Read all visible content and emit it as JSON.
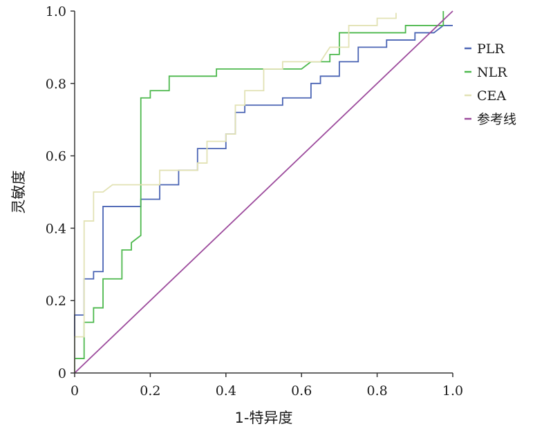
{
  "chart_data": {
    "type": "line",
    "title": "",
    "xlabel": "1-特异度",
    "ylabel": "灵敏度",
    "xlim": [
      0,
      1
    ],
    "ylim": [
      0,
      1
    ],
    "x_ticks": [
      0,
      0.2,
      0.4,
      0.6,
      0.8,
      1.0
    ],
    "x_tick_labels": [
      "0",
      "0.2",
      "0.4",
      "0.6",
      "0.8",
      "1.0"
    ],
    "y_ticks": [
      0,
      0.2,
      0.4,
      0.6,
      0.8,
      1.0
    ],
    "y_tick_labels": [
      "0",
      "0.2",
      "0.4",
      "0.6",
      "0.8",
      "1.0"
    ],
    "grid": false,
    "legend_position": "right",
    "series": [
      {
        "name": "PLR",
        "color": "#4a64b4",
        "points": [
          [
            0,
            0
          ],
          [
            0,
            0.16
          ],
          [
            0.025,
            0.16
          ],
          [
            0.025,
            0.26
          ],
          [
            0.05,
            0.26
          ],
          [
            0.05,
            0.28
          ],
          [
            0.075,
            0.28
          ],
          [
            0.075,
            0.46
          ],
          [
            0.175,
            0.46
          ],
          [
            0.175,
            0.48
          ],
          [
            0.225,
            0.48
          ],
          [
            0.225,
            0.52
          ],
          [
            0.275,
            0.52
          ],
          [
            0.275,
            0.56
          ],
          [
            0.325,
            0.56
          ],
          [
            0.325,
            0.62
          ],
          [
            0.4,
            0.62
          ],
          [
            0.4,
            0.66
          ],
          [
            0.425,
            0.66
          ],
          [
            0.425,
            0.72
          ],
          [
            0.45,
            0.72
          ],
          [
            0.45,
            0.74
          ],
          [
            0.55,
            0.74
          ],
          [
            0.55,
            0.76
          ],
          [
            0.625,
            0.76
          ],
          [
            0.625,
            0.8
          ],
          [
            0.65,
            0.8
          ],
          [
            0.65,
            0.82
          ],
          [
            0.7,
            0.82
          ],
          [
            0.7,
            0.86
          ],
          [
            0.75,
            0.86
          ],
          [
            0.75,
            0.9
          ],
          [
            0.825,
            0.9
          ],
          [
            0.825,
            0.92
          ],
          [
            0.9,
            0.92
          ],
          [
            0.9,
            0.94
          ],
          [
            0.95,
            0.94
          ],
          [
            0.975,
            0.96
          ],
          [
            1.0,
            0.96
          ]
        ]
      },
      {
        "name": "NLR",
        "color": "#4cb84c",
        "points": [
          [
            0,
            0
          ],
          [
            0,
            0.04
          ],
          [
            0.025,
            0.04
          ],
          [
            0.025,
            0.14
          ],
          [
            0.05,
            0.14
          ],
          [
            0.05,
            0.18
          ],
          [
            0.075,
            0.18
          ],
          [
            0.075,
            0.26
          ],
          [
            0.125,
            0.26
          ],
          [
            0.125,
            0.34
          ],
          [
            0.15,
            0.34
          ],
          [
            0.15,
            0.36
          ],
          [
            0.175,
            0.38
          ],
          [
            0.175,
            0.76
          ],
          [
            0.2,
            0.76
          ],
          [
            0.2,
            0.78
          ],
          [
            0.25,
            0.78
          ],
          [
            0.25,
            0.82
          ],
          [
            0.375,
            0.82
          ],
          [
            0.375,
            0.84
          ],
          [
            0.6,
            0.84
          ],
          [
            0.625,
            0.86
          ],
          [
            0.675,
            0.86
          ],
          [
            0.675,
            0.88
          ],
          [
            0.7,
            0.88
          ],
          [
            0.7,
            0.94
          ],
          [
            0.875,
            0.94
          ],
          [
            0.875,
            0.96
          ],
          [
            0.975,
            0.96
          ],
          [
            0.975,
            1.0
          ]
        ]
      },
      {
        "name": "CEA",
        "color": "#e2e2b4",
        "points": [
          [
            0,
            0
          ],
          [
            0,
            0.1
          ],
          [
            0.025,
            0.1
          ],
          [
            0.025,
            0.42
          ],
          [
            0.05,
            0.42
          ],
          [
            0.05,
            0.5
          ],
          [
            0.075,
            0.5
          ],
          [
            0.1,
            0.52
          ],
          [
            0.225,
            0.52
          ],
          [
            0.225,
            0.56
          ],
          [
            0.325,
            0.56
          ],
          [
            0.325,
            0.58
          ],
          [
            0.35,
            0.58
          ],
          [
            0.35,
            0.64
          ],
          [
            0.4,
            0.64
          ],
          [
            0.4,
            0.66
          ],
          [
            0.425,
            0.66
          ],
          [
            0.425,
            0.74
          ],
          [
            0.45,
            0.74
          ],
          [
            0.45,
            0.78
          ],
          [
            0.5,
            0.78
          ],
          [
            0.5,
            0.84
          ],
          [
            0.55,
            0.84
          ],
          [
            0.55,
            0.86
          ],
          [
            0.65,
            0.86
          ],
          [
            0.675,
            0.9
          ],
          [
            0.725,
            0.9
          ],
          [
            0.725,
            0.96
          ],
          [
            0.8,
            0.96
          ],
          [
            0.8,
            0.98
          ],
          [
            0.85,
            0.98
          ],
          [
            0.85,
            0.995
          ]
        ]
      },
      {
        "name": "参考线",
        "color": "#9c4a9c",
        "points": [
          [
            0,
            0
          ],
          [
            1,
            1
          ]
        ]
      }
    ]
  }
}
